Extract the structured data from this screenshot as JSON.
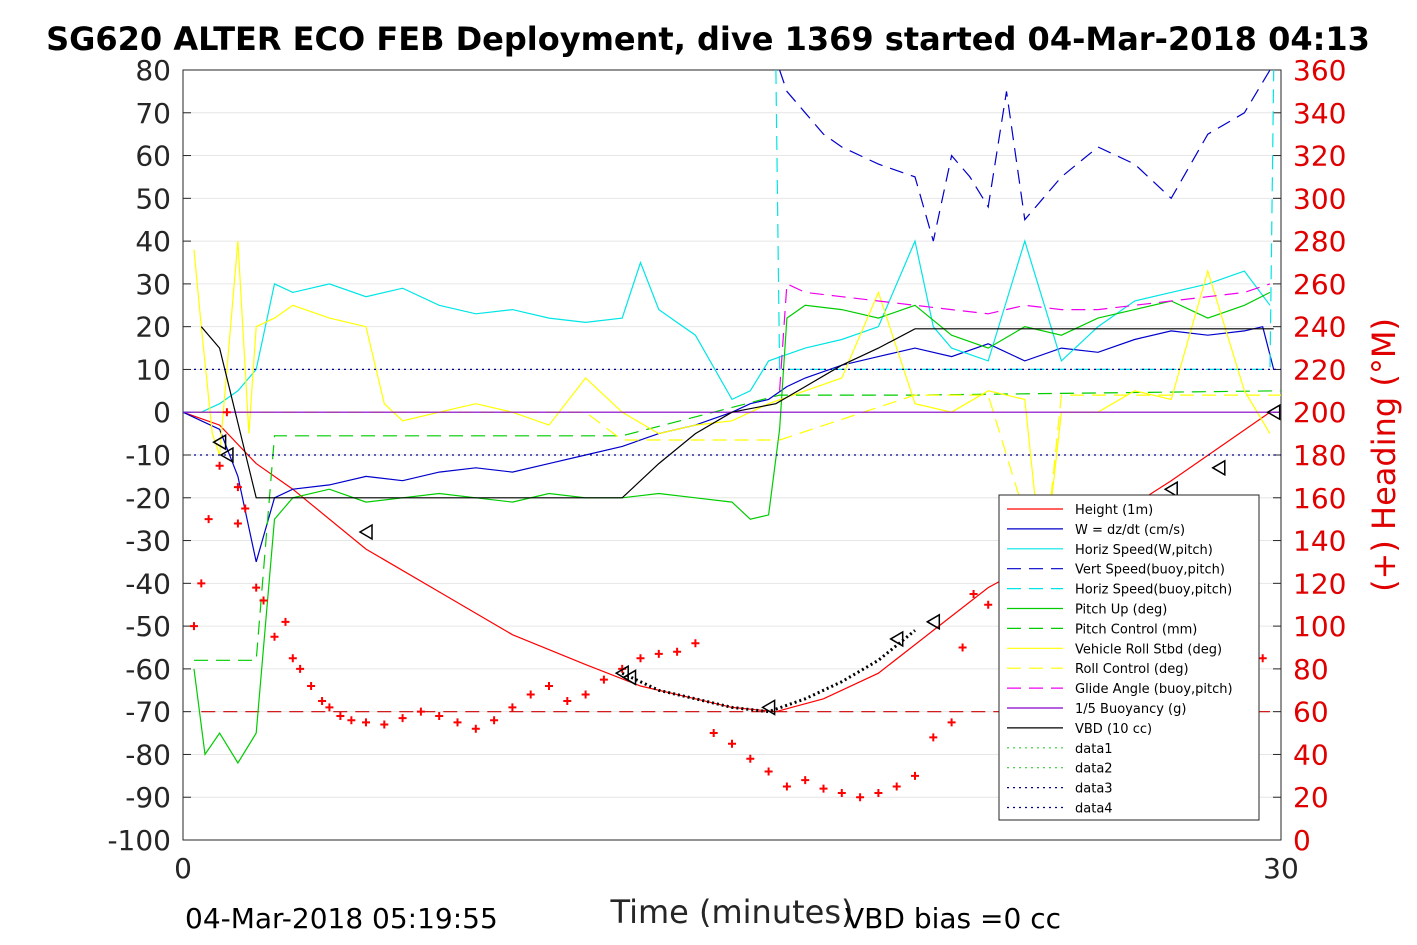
{
  "chart_data": {
    "type": "line",
    "title": "SG620 ALTER ECO FEB Deployment, dive 1369 started 04-Mar-2018 04:13",
    "xlabel": "Time (minutes)",
    "ylabel_right": "(+) Heading (°M)",
    "xlim": [
      0,
      30
    ],
    "ylim": [
      -100,
      80
    ],
    "ylim_right": [
      0,
      360
    ],
    "x_ticks": [
      "0",
      "30"
    ],
    "y_ticks": [
      "80",
      "70",
      "60",
      "50",
      "40",
      "30",
      "20",
      "10",
      "0",
      "-10",
      "-20",
      "-30",
      "-40",
      "-50",
      "-60",
      "-70",
      "-80",
      "-90",
      "-100"
    ],
    "y_right_ticks": [
      "360",
      "340",
      "320",
      "300",
      "280",
      "260",
      "240",
      "220",
      "200",
      "180",
      "160",
      "140",
      "120",
      "100",
      "80",
      "60",
      "40",
      "20",
      "0"
    ],
    "grid": "horizontal",
    "legend_position": "lower-right",
    "footer_left": "04-Mar-2018 05:19:55",
    "footer_right": "VBD bias =0 cc",
    "series": [
      {
        "name": "Height (1m)",
        "color": "#ff0000",
        "style": "solid",
        "x": [
          0,
          1,
          2,
          3,
          5,
          7,
          9,
          11,
          12.5,
          14,
          15,
          16.2,
          17.5,
          19,
          20.5,
          22,
          23.5,
          25,
          27,
          29.7
        ],
        "y": [
          0,
          -3,
          -12,
          -18,
          -32,
          -42,
          -52,
          -59,
          -64,
          -67,
          -69,
          -70,
          -67,
          -61,
          -51,
          -41,
          -34,
          -27,
          -16,
          0
        ]
      },
      {
        "name": "W = dz/dt (cm/s)",
        "color": "#0000cc",
        "style": "solid",
        "x": [
          0,
          0.5,
          1,
          1.5,
          2,
          2.5,
          3,
          4,
          5,
          6,
          7,
          8,
          9,
          10,
          11,
          12,
          13,
          14,
          15,
          15.5,
          16,
          16.5,
          17,
          18,
          19,
          20,
          21,
          22,
          23,
          24,
          25,
          26,
          27,
          28,
          29,
          29.5,
          29.8
        ],
        "y": [
          0,
          -2,
          -4,
          -15,
          -35,
          -20,
          -18,
          -17,
          -15,
          -16,
          -14,
          -13,
          -14,
          -12,
          -10,
          -8,
          -5,
          -3,
          0,
          2,
          3,
          6,
          8,
          11,
          13,
          15,
          13,
          16,
          12,
          15,
          14,
          17,
          19,
          18,
          19,
          20,
          10
        ]
      },
      {
        "name": "Horiz Speed(W,pitch)",
        "color": "#00e5e5",
        "style": "solid",
        "x": [
          0,
          0.5,
          1,
          1.5,
          2,
          2.5,
          3,
          4,
          5,
          6,
          7,
          8,
          9,
          10,
          11,
          12,
          12.5,
          13,
          14,
          15,
          15.5,
          16,
          17,
          18,
          19,
          20,
          20.5,
          21,
          22,
          23,
          24,
          25,
          26,
          27,
          28,
          29,
          29.7
        ],
        "y": [
          0,
          0,
          2,
          5,
          10,
          30,
          28,
          30,
          27,
          29,
          25,
          23,
          24,
          22,
          21,
          22,
          35,
          24,
          18,
          3,
          5,
          12,
          15,
          17,
          20,
          40,
          20,
          15,
          12,
          40,
          12,
          20,
          26,
          28,
          30,
          33,
          25
        ]
      },
      {
        "name": "Vert Speed(buoy,pitch)",
        "color": "#0000cc",
        "style": "dashed",
        "x": [
          16.3,
          16.5,
          17,
          17.5,
          18,
          19,
          20,
          20.5,
          21,
          21.5,
          22,
          22.5,
          23,
          24,
          25,
          26,
          27,
          28,
          29,
          29.7
        ],
        "y": [
          80,
          75,
          70,
          65,
          62,
          58,
          55,
          40,
          60,
          55,
          48,
          75,
          45,
          55,
          62,
          58,
          50,
          65,
          70,
          80
        ]
      },
      {
        "name": "Horiz Speed(buoy,pitch)",
        "color": "#00e5e5",
        "style": "dashed",
        "x": [
          16.2,
          16.3,
          29.7,
          29.8
        ],
        "y": [
          80,
          10,
          10,
          80
        ]
      },
      {
        "name": "Pitch Up (deg)",
        "color": "#00cc00",
        "style": "solid",
        "x": [
          0.3,
          0.6,
          1,
          1.5,
          2,
          2.5,
          3,
          4,
          5,
          6,
          7,
          8,
          9,
          10,
          11,
          12,
          13,
          14,
          15,
          15.5,
          16,
          16.3,
          16.5,
          17,
          18,
          19,
          20,
          21,
          22,
          23,
          24,
          25,
          26,
          27,
          28,
          29,
          29.7
        ],
        "y": [
          -60,
          -80,
          -75,
          -82,
          -75,
          -25,
          -20,
          -18,
          -21,
          -20,
          -19,
          -20,
          -21,
          -19,
          -20,
          -20,
          -19,
          -20,
          -21,
          -25,
          -24,
          -4,
          22,
          25,
          24,
          22,
          25,
          18,
          15,
          20,
          18,
          22,
          24,
          26,
          22,
          25,
          28
        ]
      },
      {
        "name": "Pitch Control (mm)",
        "color": "#00cc00",
        "style": "dashed",
        "x": [
          0.3,
          2,
          2.5,
          12,
          16.3,
          20,
          30
        ],
        "y": [
          -58,
          -58,
          -5.5,
          -5.5,
          4,
          4,
          5
        ]
      },
      {
        "name": "Vehicle Roll Stbd (deg)",
        "color": "#ffff00",
        "style": "solid",
        "x": [
          0.3,
          0.5,
          0.8,
          1,
          1.5,
          1.8,
          2,
          2.5,
          3,
          4,
          5,
          5.5,
          6,
          7,
          8,
          9,
          10,
          11,
          12,
          13,
          14,
          15,
          16,
          17,
          18,
          19,
          20,
          21,
          22,
          23,
          23.5,
          24,
          25,
          26,
          27,
          28,
          29,
          29.7
        ],
        "y": [
          38,
          20,
          -5,
          -10,
          40,
          -5,
          20,
          22,
          25,
          22,
          20,
          2,
          -2,
          0,
          2,
          0,
          -3,
          8,
          0,
          -5,
          -3,
          -2,
          2,
          5,
          8,
          28,
          2,
          0,
          5,
          3,
          -38,
          0,
          0,
          5,
          3,
          33,
          5,
          -5
        ]
      },
      {
        "name": "Roll Control (deg)",
        "color": "#ffff00",
        "style": "dashed",
        "x": [
          0.3,
          11,
          12,
          16.3,
          20,
          22,
          23.5,
          24,
          30
        ],
        "y": [
          0,
          0,
          -6.5,
          -6.5,
          4,
          4,
          -38,
          4,
          4
        ]
      },
      {
        "name": "Glide Angle (buoy,pitch)",
        "color": "#ee00ee",
        "style": "dashed",
        "x": [
          16.3,
          16.5,
          17,
          18,
          19,
          20,
          21,
          22,
          23,
          24,
          25,
          26,
          27,
          28,
          29,
          29.7
        ],
        "y": [
          5,
          30,
          28,
          27,
          26,
          25,
          24,
          23,
          25,
          24,
          24,
          25,
          26,
          27,
          28,
          30
        ]
      },
      {
        "name": "1/5 Buoyancy (g)",
        "color": "#8800cc",
        "style": "solid",
        "x": [
          0,
          30
        ],
        "y": [
          0,
          0
        ]
      },
      {
        "name": "VBD (10 cc)",
        "color": "#000000",
        "style": "solid",
        "x": [
          0.5,
          1,
          2,
          12,
          13,
          14,
          15,
          16.2,
          17,
          18,
          19,
          20,
          29.8
        ],
        "y": [
          20,
          15,
          -20,
          -20,
          -12,
          -5,
          0,
          2,
          6,
          11,
          15,
          19.5,
          19.5
        ]
      },
      {
        "name": "data1",
        "color": "#33cc33",
        "style": "dotted",
        "x": [],
        "y": []
      },
      {
        "name": "data2",
        "color": "#33cc33",
        "style": "dotted",
        "x": [],
        "y": []
      },
      {
        "name": "data3",
        "color": "#000088",
        "style": "dotted",
        "x": [
          0.3,
          30
        ],
        "y": [
          10,
          10
        ]
      },
      {
        "name": "data4",
        "color": "#000088",
        "style": "dotted",
        "x": [
          0.3,
          30
        ],
        "y": [
          -10,
          -10
        ]
      }
    ],
    "heading_markers": {
      "color": "#ff0000",
      "axis": "right",
      "x": [
        0.3,
        0.5,
        0.7,
        1,
        1.2,
        1.5,
        1.5,
        1.7,
        2,
        2.2,
        2.5,
        2.8,
        3,
        3.2,
        3.5,
        3.8,
        4,
        4.3,
        4.6,
        5,
        5.5,
        6,
        6.5,
        7,
        7.5,
        8,
        8.5,
        9,
        9.5,
        10,
        10.5,
        11,
        11.5,
        12,
        12.5,
        13,
        13.5,
        14,
        14.5,
        15,
        15.5,
        16,
        16.5,
        17,
        17.5,
        18,
        18.5,
        19,
        19.5,
        20,
        20.5,
        21,
        21.3,
        21.6,
        22,
        22.5,
        23,
        23.2,
        23.4,
        23.6,
        24,
        24.5,
        25,
        25.5,
        26,
        26.5,
        27,
        27.5,
        28,
        28.5,
        29,
        29.5
      ],
      "y": [
        100,
        120,
        150,
        175,
        200,
        165,
        148,
        155,
        118,
        112,
        95,
        102,
        85,
        80,
        72,
        65,
        62,
        58,
        56,
        55,
        54,
        57,
        60,
        58,
        55,
        52,
        56,
        62,
        68,
        72,
        65,
        68,
        75,
        80,
        85,
        87,
        88,
        92,
        50,
        45,
        38,
        32,
        25,
        28,
        24,
        22,
        20,
        22,
        25,
        30,
        48,
        55,
        90,
        115,
        110,
        98,
        85,
        88,
        92,
        80,
        48,
        35,
        28,
        25,
        22,
        30,
        45,
        60,
        78,
        86,
        90,
        85
      ]
    },
    "reference_line": {
      "color": "#cc0000",
      "style": "dashed",
      "axis": "right",
      "y": 60
    },
    "triangle_markers": {
      "x": [
        1,
        1.2,
        5,
        12,
        12.2,
        16,
        19.5,
        20.5,
        23.5,
        25,
        27,
        28.3,
        29.8
      ],
      "y": [
        -7,
        -10,
        -28,
        -61,
        -62,
        -69,
        -53,
        -49,
        -37,
        -31,
        -18,
        -13,
        0
      ]
    },
    "vbd_dotted_segment": {
      "x": [
        12,
        13,
        14,
        15,
        16,
        17,
        18,
        19,
        20
      ],
      "y": [
        -61,
        -65,
        -67,
        -69,
        -70,
        -67,
        -63,
        -58,
        -51
      ]
    }
  }
}
